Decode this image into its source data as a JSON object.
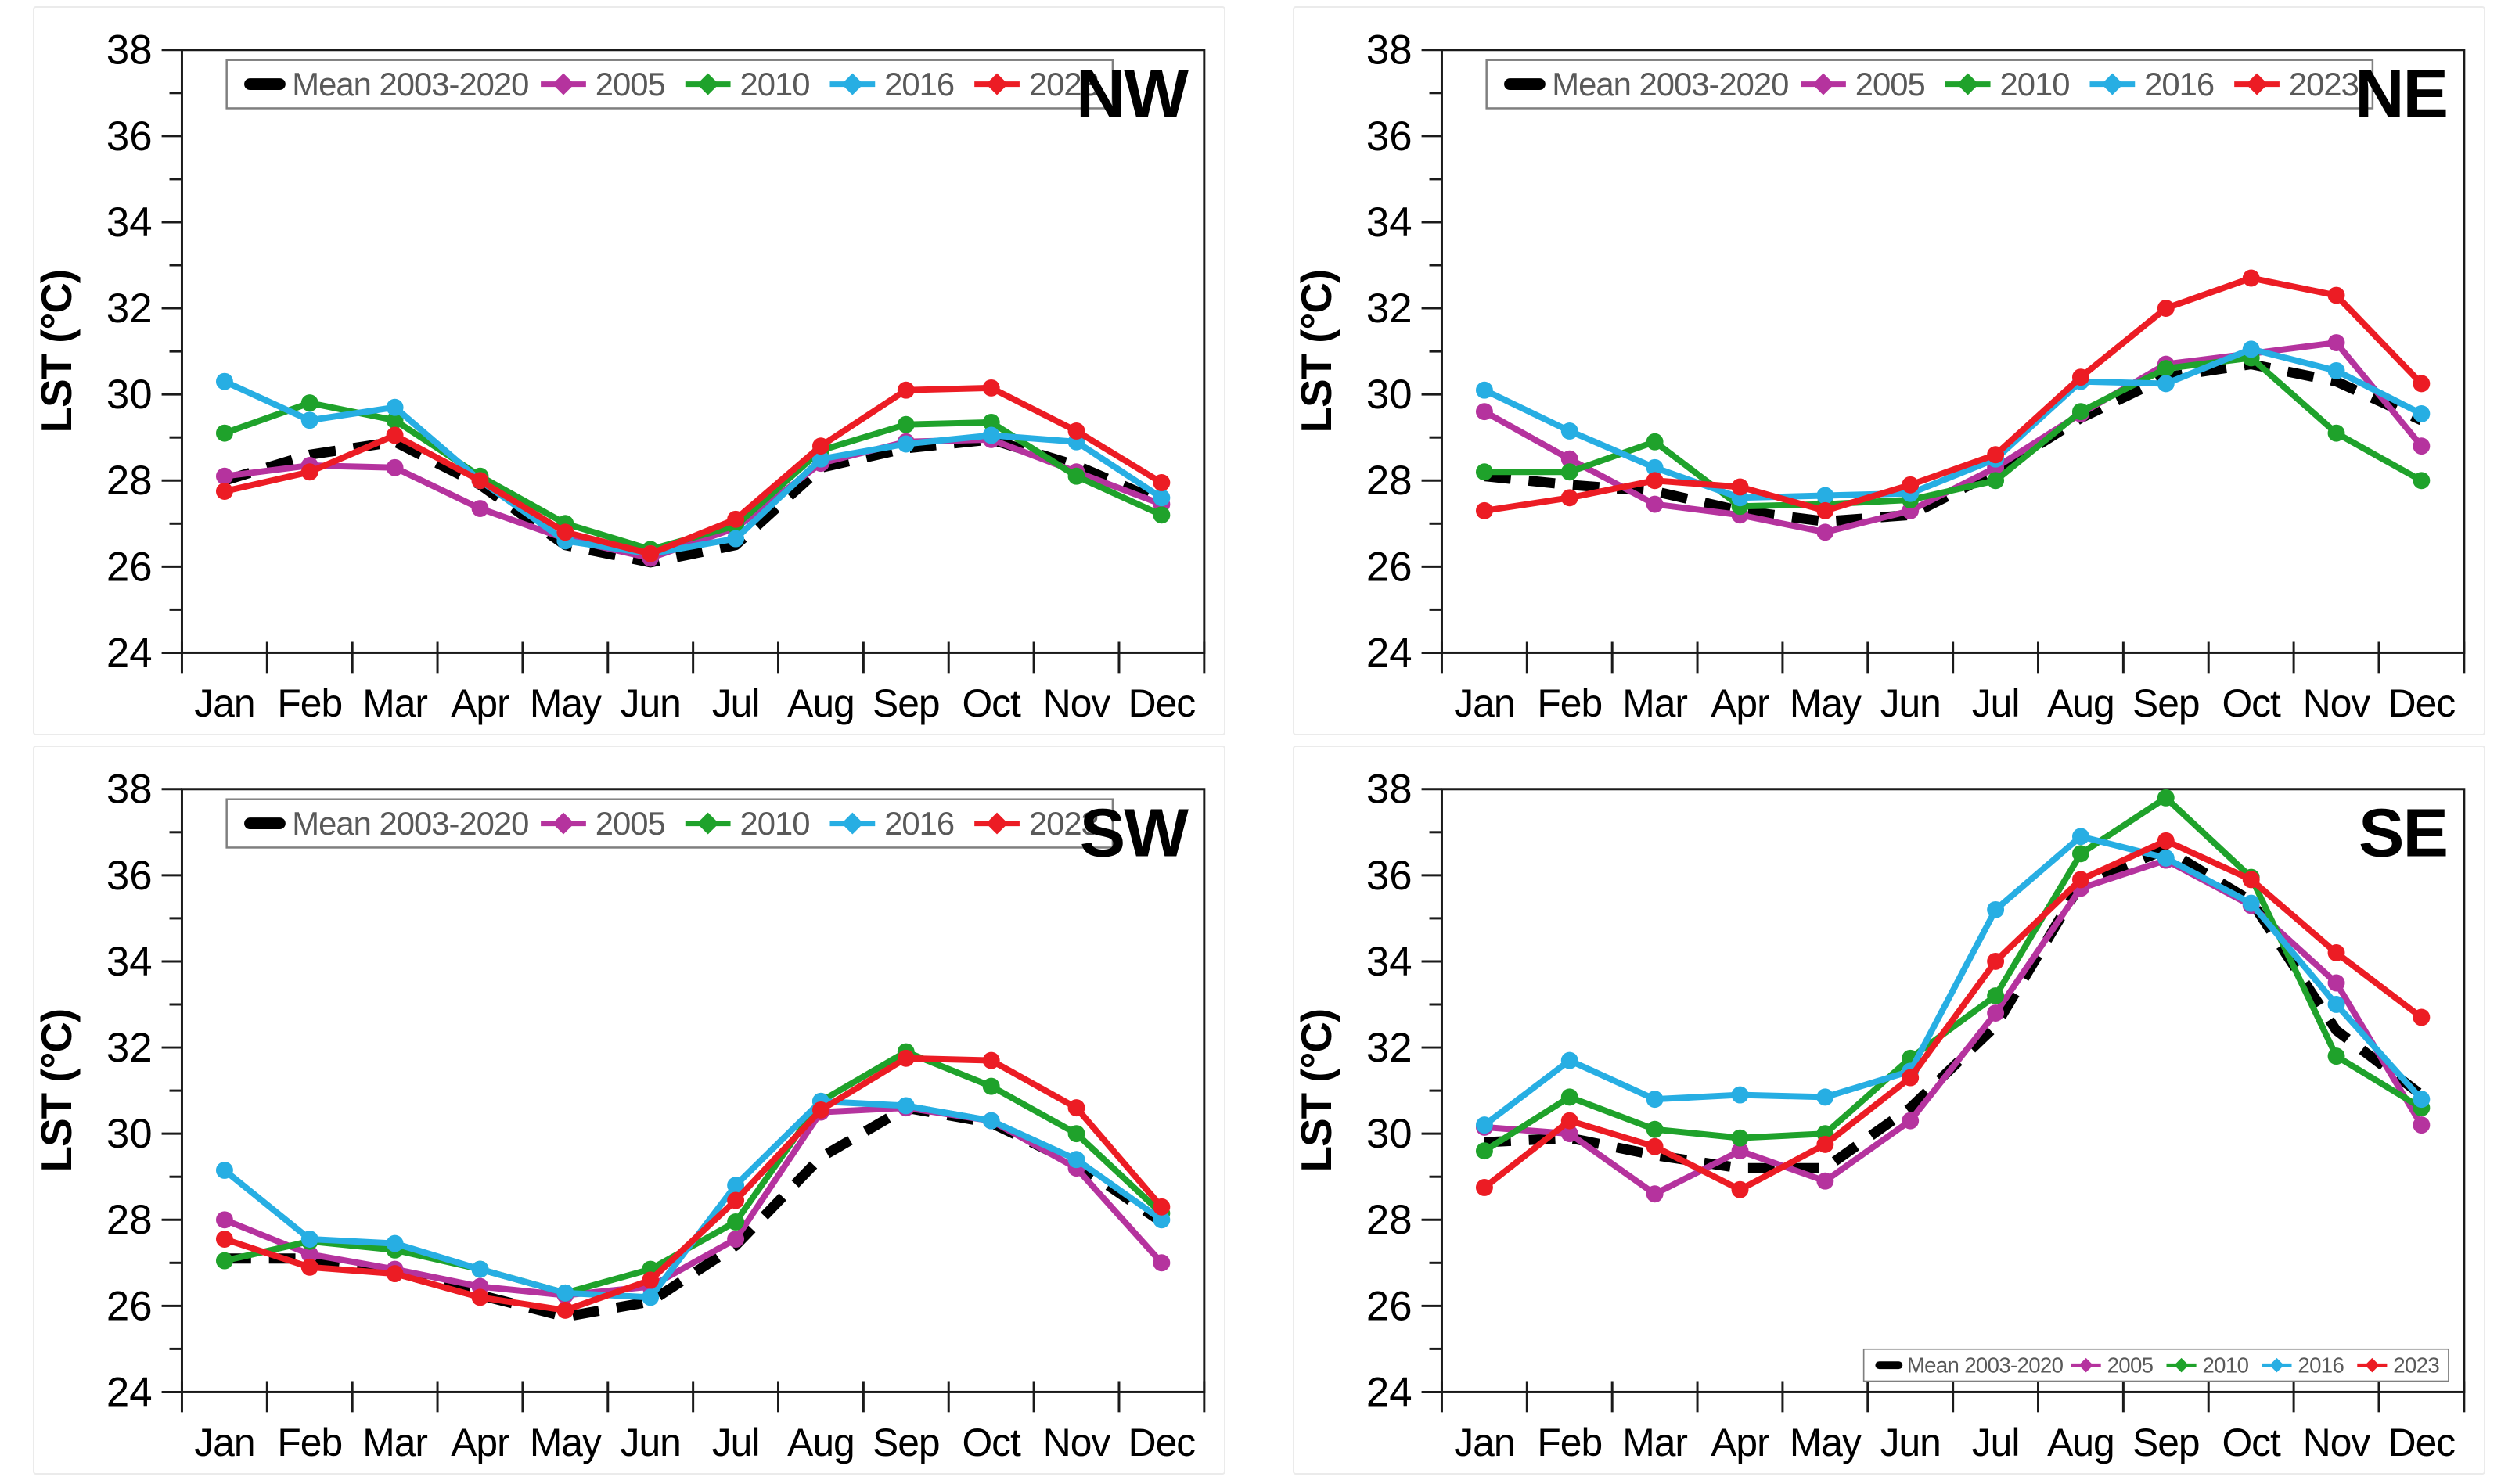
{
  "figure": {
    "ylabel": "LST (°C)",
    "months": [
      "Jan",
      "Feb",
      "Mar",
      "Apr",
      "May",
      "Jun",
      "Jul",
      "Aug",
      "Sep",
      "Oct",
      "Nov",
      "Dec"
    ],
    "yticks_labeled": [
      24,
      26,
      28,
      30,
      32,
      34,
      36,
      38
    ],
    "colors": {
      "mean": "#000000",
      "y2005": "#b5339e",
      "y2010": "#1fa22b",
      "y2016": "#27aee3",
      "y2023": "#ec1c24",
      "legend_text": "#595959",
      "frame": "#1a1a1a"
    }
  },
  "chart_data": [
    {
      "type": "line",
      "id": "nw",
      "title": "NW",
      "xlabel": "",
      "ylabel": "LST (°C)",
      "ylim": [
        24,
        38
      ],
      "grid": false,
      "legend_position": "top",
      "categories": [
        "Jan",
        "Feb",
        "Mar",
        "Apr",
        "May",
        "Jun",
        "Jul",
        "Aug",
        "Sep",
        "Oct",
        "Nov",
        "Dec"
      ],
      "series": [
        {
          "name": "Mean 2003-2020",
          "style": "dashed",
          "color": "#000000",
          "values": [
            28.0,
            28.6,
            28.9,
            27.9,
            26.5,
            26.1,
            26.5,
            28.3,
            28.75,
            28.95,
            28.35,
            27.5
          ]
        },
        {
          "name": "2005",
          "style": "solid",
          "color": "#b5339e",
          "values": [
            28.1,
            28.35,
            28.3,
            27.35,
            26.65,
            26.2,
            26.9,
            28.4,
            28.9,
            28.95,
            28.2,
            27.45
          ]
        },
        {
          "name": "2010",
          "style": "solid",
          "color": "#1fa22b",
          "values": [
            29.1,
            29.8,
            29.4,
            28.1,
            27.0,
            26.4,
            26.95,
            28.7,
            29.3,
            29.35,
            28.1,
            27.2
          ]
        },
        {
          "name": "2016",
          "style": "solid",
          "color": "#27aee3",
          "values": [
            30.3,
            29.4,
            29.7,
            28.0,
            26.6,
            26.3,
            26.65,
            28.5,
            28.85,
            29.05,
            28.9,
            27.6
          ]
        },
        {
          "name": "2023",
          "style": "solid",
          "color": "#ec1c24",
          "values": [
            27.75,
            28.2,
            29.05,
            28.0,
            26.8,
            26.3,
            27.1,
            28.8,
            30.1,
            30.15,
            29.15,
            27.95
          ]
        }
      ]
    },
    {
      "type": "line",
      "id": "ne",
      "title": "NE",
      "xlabel": "",
      "ylabel": "LST (°C)",
      "ylim": [
        24,
        38
      ],
      "grid": false,
      "legend_position": "top",
      "categories": [
        "Jan",
        "Feb",
        "Mar",
        "Apr",
        "May",
        "Jun",
        "Jul",
        "Aug",
        "Sep",
        "Oct",
        "Nov",
        "Dec"
      ],
      "series": [
        {
          "name": "Mean 2003-2020",
          "style": "dashed",
          "color": "#000000",
          "values": [
            28.1,
            27.9,
            27.75,
            27.3,
            27.05,
            27.2,
            28.2,
            29.45,
            30.4,
            30.7,
            30.3,
            29.4
          ]
        },
        {
          "name": "2005",
          "style": "solid",
          "color": "#b5339e",
          "values": [
            29.6,
            28.5,
            27.45,
            27.2,
            26.8,
            27.3,
            28.3,
            29.55,
            30.7,
            30.95,
            31.2,
            28.8
          ]
        },
        {
          "name": "2010",
          "style": "solid",
          "color": "#1fa22b",
          "values": [
            28.2,
            28.2,
            28.9,
            27.4,
            27.45,
            27.55,
            28.0,
            29.6,
            30.6,
            30.85,
            29.1,
            28.0
          ]
        },
        {
          "name": "2016",
          "style": "solid",
          "color": "#27aee3",
          "values": [
            30.1,
            29.15,
            28.3,
            27.6,
            27.65,
            27.7,
            28.5,
            30.3,
            30.25,
            31.05,
            30.55,
            29.55
          ]
        },
        {
          "name": "2023",
          "style": "solid",
          "color": "#ec1c24",
          "values": [
            27.3,
            27.6,
            28.0,
            27.85,
            27.3,
            27.9,
            28.6,
            30.4,
            32.0,
            32.7,
            32.3,
            30.25
          ]
        }
      ]
    },
    {
      "type": "line",
      "id": "sw",
      "title": "SW",
      "xlabel": "",
      "ylabel": "LST (°C)",
      "ylim": [
        24,
        38
      ],
      "grid": false,
      "legend_position": "top",
      "categories": [
        "Jan",
        "Feb",
        "Mar",
        "Apr",
        "May",
        "Jun",
        "Jul",
        "Aug",
        "Sep",
        "Oct",
        "Nov",
        "Dec"
      ],
      "series": [
        {
          "name": "Mean 2003-2020",
          "style": "dashed",
          "color": "#000000",
          "values": [
            27.1,
            27.1,
            26.8,
            26.25,
            25.75,
            26.1,
            27.4,
            29.45,
            30.6,
            30.25,
            29.3,
            27.95
          ]
        },
        {
          "name": "2005",
          "style": "solid",
          "color": "#b5339e",
          "values": [
            28.0,
            27.2,
            26.85,
            26.45,
            26.25,
            26.45,
            27.55,
            30.5,
            30.6,
            30.3,
            29.2,
            27.0
          ]
        },
        {
          "name": "2010",
          "style": "solid",
          "color": "#1fa22b",
          "values": [
            27.05,
            27.5,
            27.3,
            26.85,
            26.3,
            26.85,
            27.95,
            30.75,
            31.9,
            31.1,
            30.0,
            28.15
          ]
        },
        {
          "name": "2016",
          "style": "solid",
          "color": "#27aee3",
          "values": [
            29.15,
            27.55,
            27.45,
            26.85,
            26.3,
            26.2,
            28.8,
            30.75,
            30.65,
            30.3,
            29.4,
            28.0
          ]
        },
        {
          "name": "2023",
          "style": "solid",
          "color": "#ec1c24",
          "values": [
            27.55,
            26.9,
            26.75,
            26.2,
            25.9,
            26.6,
            28.45,
            30.55,
            31.75,
            31.7,
            30.6,
            28.3
          ]
        }
      ]
    },
    {
      "type": "line",
      "id": "se",
      "title": "SE",
      "xlabel": "",
      "ylabel": "LST (°C)",
      "ylim": [
        24,
        38
      ],
      "grid": false,
      "legend_position": "bottom",
      "categories": [
        "Jan",
        "Feb",
        "Mar",
        "Apr",
        "May",
        "Jun",
        "Jul",
        "Aug",
        "Sep",
        "Oct",
        "Nov",
        "Dec"
      ],
      "series": [
        {
          "name": "Mean 2003-2020",
          "style": "dashed",
          "color": "#000000",
          "values": [
            29.8,
            29.9,
            29.5,
            29.2,
            29.2,
            30.6,
            32.5,
            35.8,
            36.6,
            35.4,
            32.4,
            30.9
          ]
        },
        {
          "name": "2005",
          "style": "solid",
          "color": "#b5339e",
          "values": [
            30.15,
            30.0,
            28.6,
            29.6,
            28.9,
            30.3,
            32.8,
            35.7,
            36.35,
            35.3,
            33.5,
            30.2
          ]
        },
        {
          "name": "2010",
          "style": "solid",
          "color": "#1fa22b",
          "values": [
            29.6,
            30.85,
            30.1,
            29.9,
            30.0,
            31.75,
            33.2,
            36.5,
            37.8,
            35.95,
            31.8,
            30.6
          ]
        },
        {
          "name": "2016",
          "style": "solid",
          "color": "#27aee3",
          "values": [
            30.2,
            31.7,
            30.8,
            30.9,
            30.85,
            31.45,
            35.2,
            36.9,
            36.4,
            35.35,
            33.0,
            30.8
          ]
        },
        {
          "name": "2023",
          "style": "solid",
          "color": "#ec1c24",
          "values": [
            28.75,
            30.3,
            29.7,
            28.7,
            29.75,
            31.3,
            34.0,
            35.9,
            36.8,
            35.9,
            34.2,
            32.7
          ]
        }
      ]
    }
  ]
}
